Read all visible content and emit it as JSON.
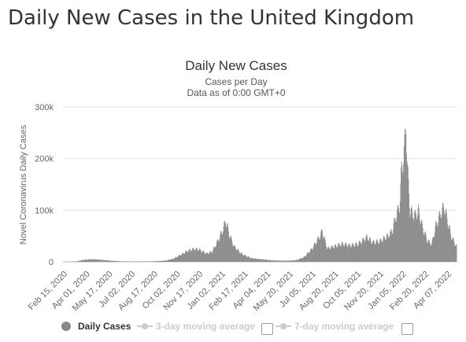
{
  "page": {
    "title": "Daily New Cases in the United Kingdom"
  },
  "colors": {
    "bar": "#8a8a8a",
    "grid": "#e6e6e6",
    "text": "#333333",
    "axis": "#666666",
    "legend_hidden": "#cccccc"
  },
  "legend": {
    "items": [
      {
        "label": "Daily Cases",
        "visible": true,
        "marker": "circle"
      },
      {
        "label": "3-day moving average",
        "visible": false,
        "marker": "line-dot"
      },
      {
        "label": "7-day moving average",
        "visible": false,
        "marker": "line-dot"
      }
    ]
  },
  "chart_data": {
    "type": "bar",
    "title": "Daily New Cases",
    "subtitle": "Cases per Day",
    "subtitle2": "Data as of 0:00 GMT+0",
    "ylabel": "Novel Coronavirus Daily Cases",
    "xlabel": "",
    "ylim": [
      0,
      300000
    ],
    "y_ticks": [
      0,
      100000,
      200000,
      300000
    ],
    "y_tick_labels": [
      "0",
      "100k",
      "200k",
      "300k"
    ],
    "x_range": [
      "2020-02-15",
      "2022-04-19"
    ],
    "x_tick_labels": [
      "Feb 15, 2020",
      "Apr 01, 2020",
      "May 17, 2020",
      "Jul 02, 2020",
      "Aug 17, 2020",
      "Oct 02, 2020",
      "Nov 17, 2020",
      "Jan 02, 2021",
      "Feb 17, 2021",
      "Apr 04, 2021",
      "May 20, 2021",
      "Jul 05, 2021",
      "Aug 20, 2021",
      "Oct 05, 2021",
      "Nov 20, 2021",
      "Jan 05, 2022",
      "Feb 20, 2022",
      "Apr 07, 2022"
    ],
    "grid": true,
    "legend_position": "bottom",
    "series": [
      {
        "name": "Daily Cases",
        "points": [
          [
            "2020-02-15",
            0
          ],
          [
            "2020-03-01",
            20
          ],
          [
            "2020-03-15",
            1000
          ],
          [
            "2020-03-25",
            3500
          ],
          [
            "2020-04-10",
            5000
          ],
          [
            "2020-04-25",
            4500
          ],
          [
            "2020-05-10",
            3200
          ],
          [
            "2020-05-25",
            2000
          ],
          [
            "2020-06-10",
            1000
          ],
          [
            "2020-07-01",
            600
          ],
          [
            "2020-08-01",
            800
          ],
          [
            "2020-08-20",
            1100
          ],
          [
            "2020-09-10",
            2500
          ],
          [
            "2020-09-25",
            6000
          ],
          [
            "2020-10-10",
            14000
          ],
          [
            "2020-10-25",
            22000
          ],
          [
            "2020-11-05",
            25000
          ],
          [
            "2020-11-15",
            24000
          ],
          [
            "2020-12-01",
            16000
          ],
          [
            "2020-12-12",
            20000
          ],
          [
            "2020-12-22",
            38000
          ],
          [
            "2020-12-30",
            55000
          ],
          [
            "2021-01-04",
            65000
          ],
          [
            "2021-01-08",
            82000
          ],
          [
            "2021-01-15",
            55000
          ],
          [
            "2021-01-25",
            30000
          ],
          [
            "2021-02-10",
            15000
          ],
          [
            "2021-03-01",
            7000
          ],
          [
            "2021-03-20",
            5000
          ],
          [
            "2021-04-10",
            3000
          ],
          [
            "2021-05-01",
            2200
          ],
          [
            "2021-05-20",
            2500
          ],
          [
            "2021-06-01",
            3500
          ],
          [
            "2021-06-15",
            9000
          ],
          [
            "2021-07-01",
            25000
          ],
          [
            "2021-07-17",
            50000
          ],
          [
            "2021-07-22",
            60000
          ],
          [
            "2021-08-01",
            26000
          ],
          [
            "2021-08-15",
            30000
          ],
          [
            "2021-09-01",
            35000
          ],
          [
            "2021-09-15",
            32000
          ],
          [
            "2021-10-01",
            34000
          ],
          [
            "2021-10-20",
            48000
          ],
          [
            "2021-11-01",
            38000
          ],
          [
            "2021-11-15",
            40000
          ],
          [
            "2021-12-01",
            50000
          ],
          [
            "2021-12-10",
            60000
          ],
          [
            "2021-12-18",
            90000
          ],
          [
            "2021-12-25",
            110000
          ],
          [
            "2021-12-29",
            180000
          ],
          [
            "2022-01-04",
            220000
          ],
          [
            "2022-01-07",
            275000
          ],
          [
            "2022-01-10",
            180000
          ],
          [
            "2022-01-15",
            100000
          ],
          [
            "2022-01-25",
            90000
          ],
          [
            "2022-02-01",
            100000
          ],
          [
            "2022-02-10",
            65000
          ],
          [
            "2022-02-20",
            40000
          ],
          [
            "2022-02-28",
            35000
          ],
          [
            "2022-03-08",
            70000
          ],
          [
            "2022-03-18",
            95000
          ],
          [
            "2022-03-25",
            108000
          ],
          [
            "2022-04-01",
            80000
          ],
          [
            "2022-04-08",
            50000
          ],
          [
            "2022-04-19",
            30000
          ]
        ]
      }
    ]
  }
}
